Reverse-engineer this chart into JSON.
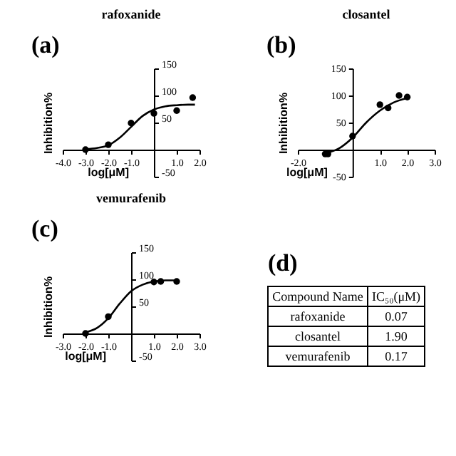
{
  "chart_data": [
    {
      "type": "scatter",
      "title": "rafoxanide",
      "annotations": [
        "(a)"
      ],
      "xlabel": "log[μM]",
      "ylabel": "Inhibition%",
      "xlim": [
        -4,
        2
      ],
      "xticks": [
        {
          "value": -4,
          "label": "-4.0"
        },
        {
          "value": -3,
          "label": "-3.0"
        },
        {
          "value": -2,
          "label": "-2.0"
        },
        {
          "value": -1,
          "label": "-1.0"
        },
        {
          "value": 1,
          "label": "1.0"
        },
        {
          "value": 2,
          "label": "2.0"
        }
      ],
      "ylim": [
        -50,
        150
      ],
      "yticks": [
        -50,
        50,
        100,
        150
      ],
      "grid": false,
      "marker": "circle",
      "series": [
        {
          "type": "scatter",
          "color": "#000000",
          "x": [
            -3,
            -2,
            -1,
            0,
            1,
            1.7
          ],
          "values": [
            0,
            9,
            49,
            67,
            72,
            96
          ]
        },
        {
          "type": "line",
          "marker": "none",
          "color": "#000000",
          "x": [
            -3,
            -2.5,
            -2,
            -1.5,
            -1,
            -0.5,
            0,
            0.5,
            1,
            1.5,
            1.8
          ],
          "values": [
            1,
            3,
            8,
            22,
            42,
            62,
            74,
            80,
            82,
            83,
            83
          ]
        }
      ]
    },
    {
      "type": "scatter",
      "title": "closantel",
      "annotations": [
        "(b)"
      ],
      "xlabel": "log[μM]",
      "ylabel": "Inhibition%",
      "xlim": [
        -2,
        3
      ],
      "xticks": [
        {
          "value": -2,
          "label": "-2.0"
        },
        {
          "value": -1,
          "label": null
        },
        {
          "value": 1,
          "label": "1.0"
        },
        {
          "value": 2,
          "label": "2.0"
        },
        {
          "value": 3,
          "label": "3.0"
        }
      ],
      "ylim": [
        -50,
        150
      ],
      "yticks": [
        -50,
        50,
        100,
        150
      ],
      "grid": false,
      "marker": "circle",
      "series": [
        {
          "type": "scatter",
          "color": "#000000",
          "x": [
            -1,
            -0.9,
            0,
            1,
            1.3,
            1.7,
            2
          ],
          "values": [
            -8,
            -8,
            25,
            83,
            77,
            100,
            97
          ]
        },
        {
          "type": "line",
          "marker": "none",
          "color": "#000000",
          "x": [
            -1,
            -0.5,
            0,
            0.5,
            1,
            1.5,
            2
          ],
          "values": [
            -7,
            2,
            22,
            50,
            72,
            87,
            95
          ]
        }
      ]
    },
    {
      "type": "scatter",
      "title": "vemurafenib",
      "annotations": [
        "(c)"
      ],
      "xlabel": "log[μM]",
      "ylabel": "Inhibition%",
      "xlim": [
        -3,
        3
      ],
      "xticks": [
        {
          "value": -3,
          "label": "-3.0"
        },
        {
          "value": -2,
          "label": "-2.0"
        },
        {
          "value": -1,
          "label": "-1.0"
        },
        {
          "value": 1,
          "label": "1.0"
        },
        {
          "value": 2,
          "label": "2.0"
        },
        {
          "value": 3,
          "label": "3.0"
        }
      ],
      "ylim": [
        -50,
        150
      ],
      "yticks": [
        -50,
        50,
        100,
        150
      ],
      "grid": false,
      "marker": "circle",
      "series": [
        {
          "type": "scatter",
          "color": "#000000",
          "x": [
            -2,
            -1,
            1,
            1.3,
            2
          ],
          "values": [
            0,
            31,
            95,
            96,
            96
          ]
        },
        {
          "type": "line",
          "marker": "none",
          "color": "#000000",
          "x": [
            -2,
            -1.5,
            -1,
            -0.5,
            0,
            0.5,
            1,
            1.5,
            2
          ],
          "values": [
            2,
            10,
            28,
            55,
            78,
            90,
            96,
            98,
            98
          ]
        }
      ]
    },
    {
      "type": "other",
      "annotations": [
        "(d)"
      ],
      "xlabel": "Compound Name",
      "ylabel": "IC₅₀(μM)",
      "categories": [
        "rafoxanide",
        "closantel",
        "vemurafenib"
      ],
      "value_labels": [
        "0.07",
        "1.90",
        "0.17"
      ]
    }
  ]
}
